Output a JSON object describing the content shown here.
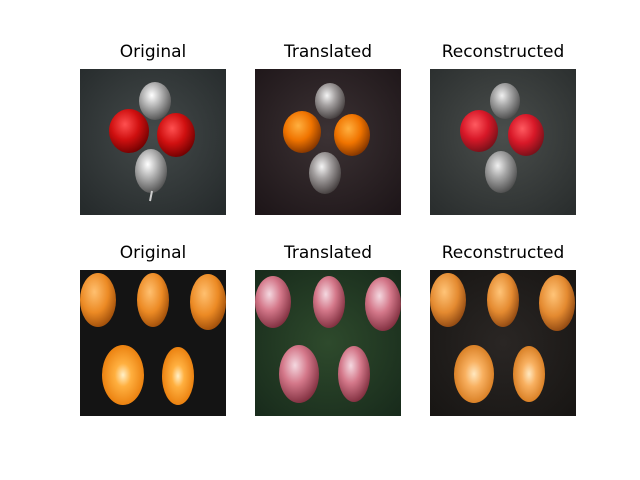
{
  "rows": [
    {
      "panels": [
        {
          "title": "Original",
          "image": "silver-pears-red-apples"
        },
        {
          "title": "Translated",
          "image": "silver-pears-orange-fruits"
        },
        {
          "title": "Reconstructed",
          "image": "silver-pears-red-apples-reconstructed"
        }
      ]
    },
    {
      "panels": [
        {
          "title": "Original",
          "image": "oranges-on-black"
        },
        {
          "title": "Translated",
          "image": "apples-on-green"
        },
        {
          "title": "Reconstructed",
          "image": "oranges-reconstructed"
        }
      ]
    }
  ]
}
